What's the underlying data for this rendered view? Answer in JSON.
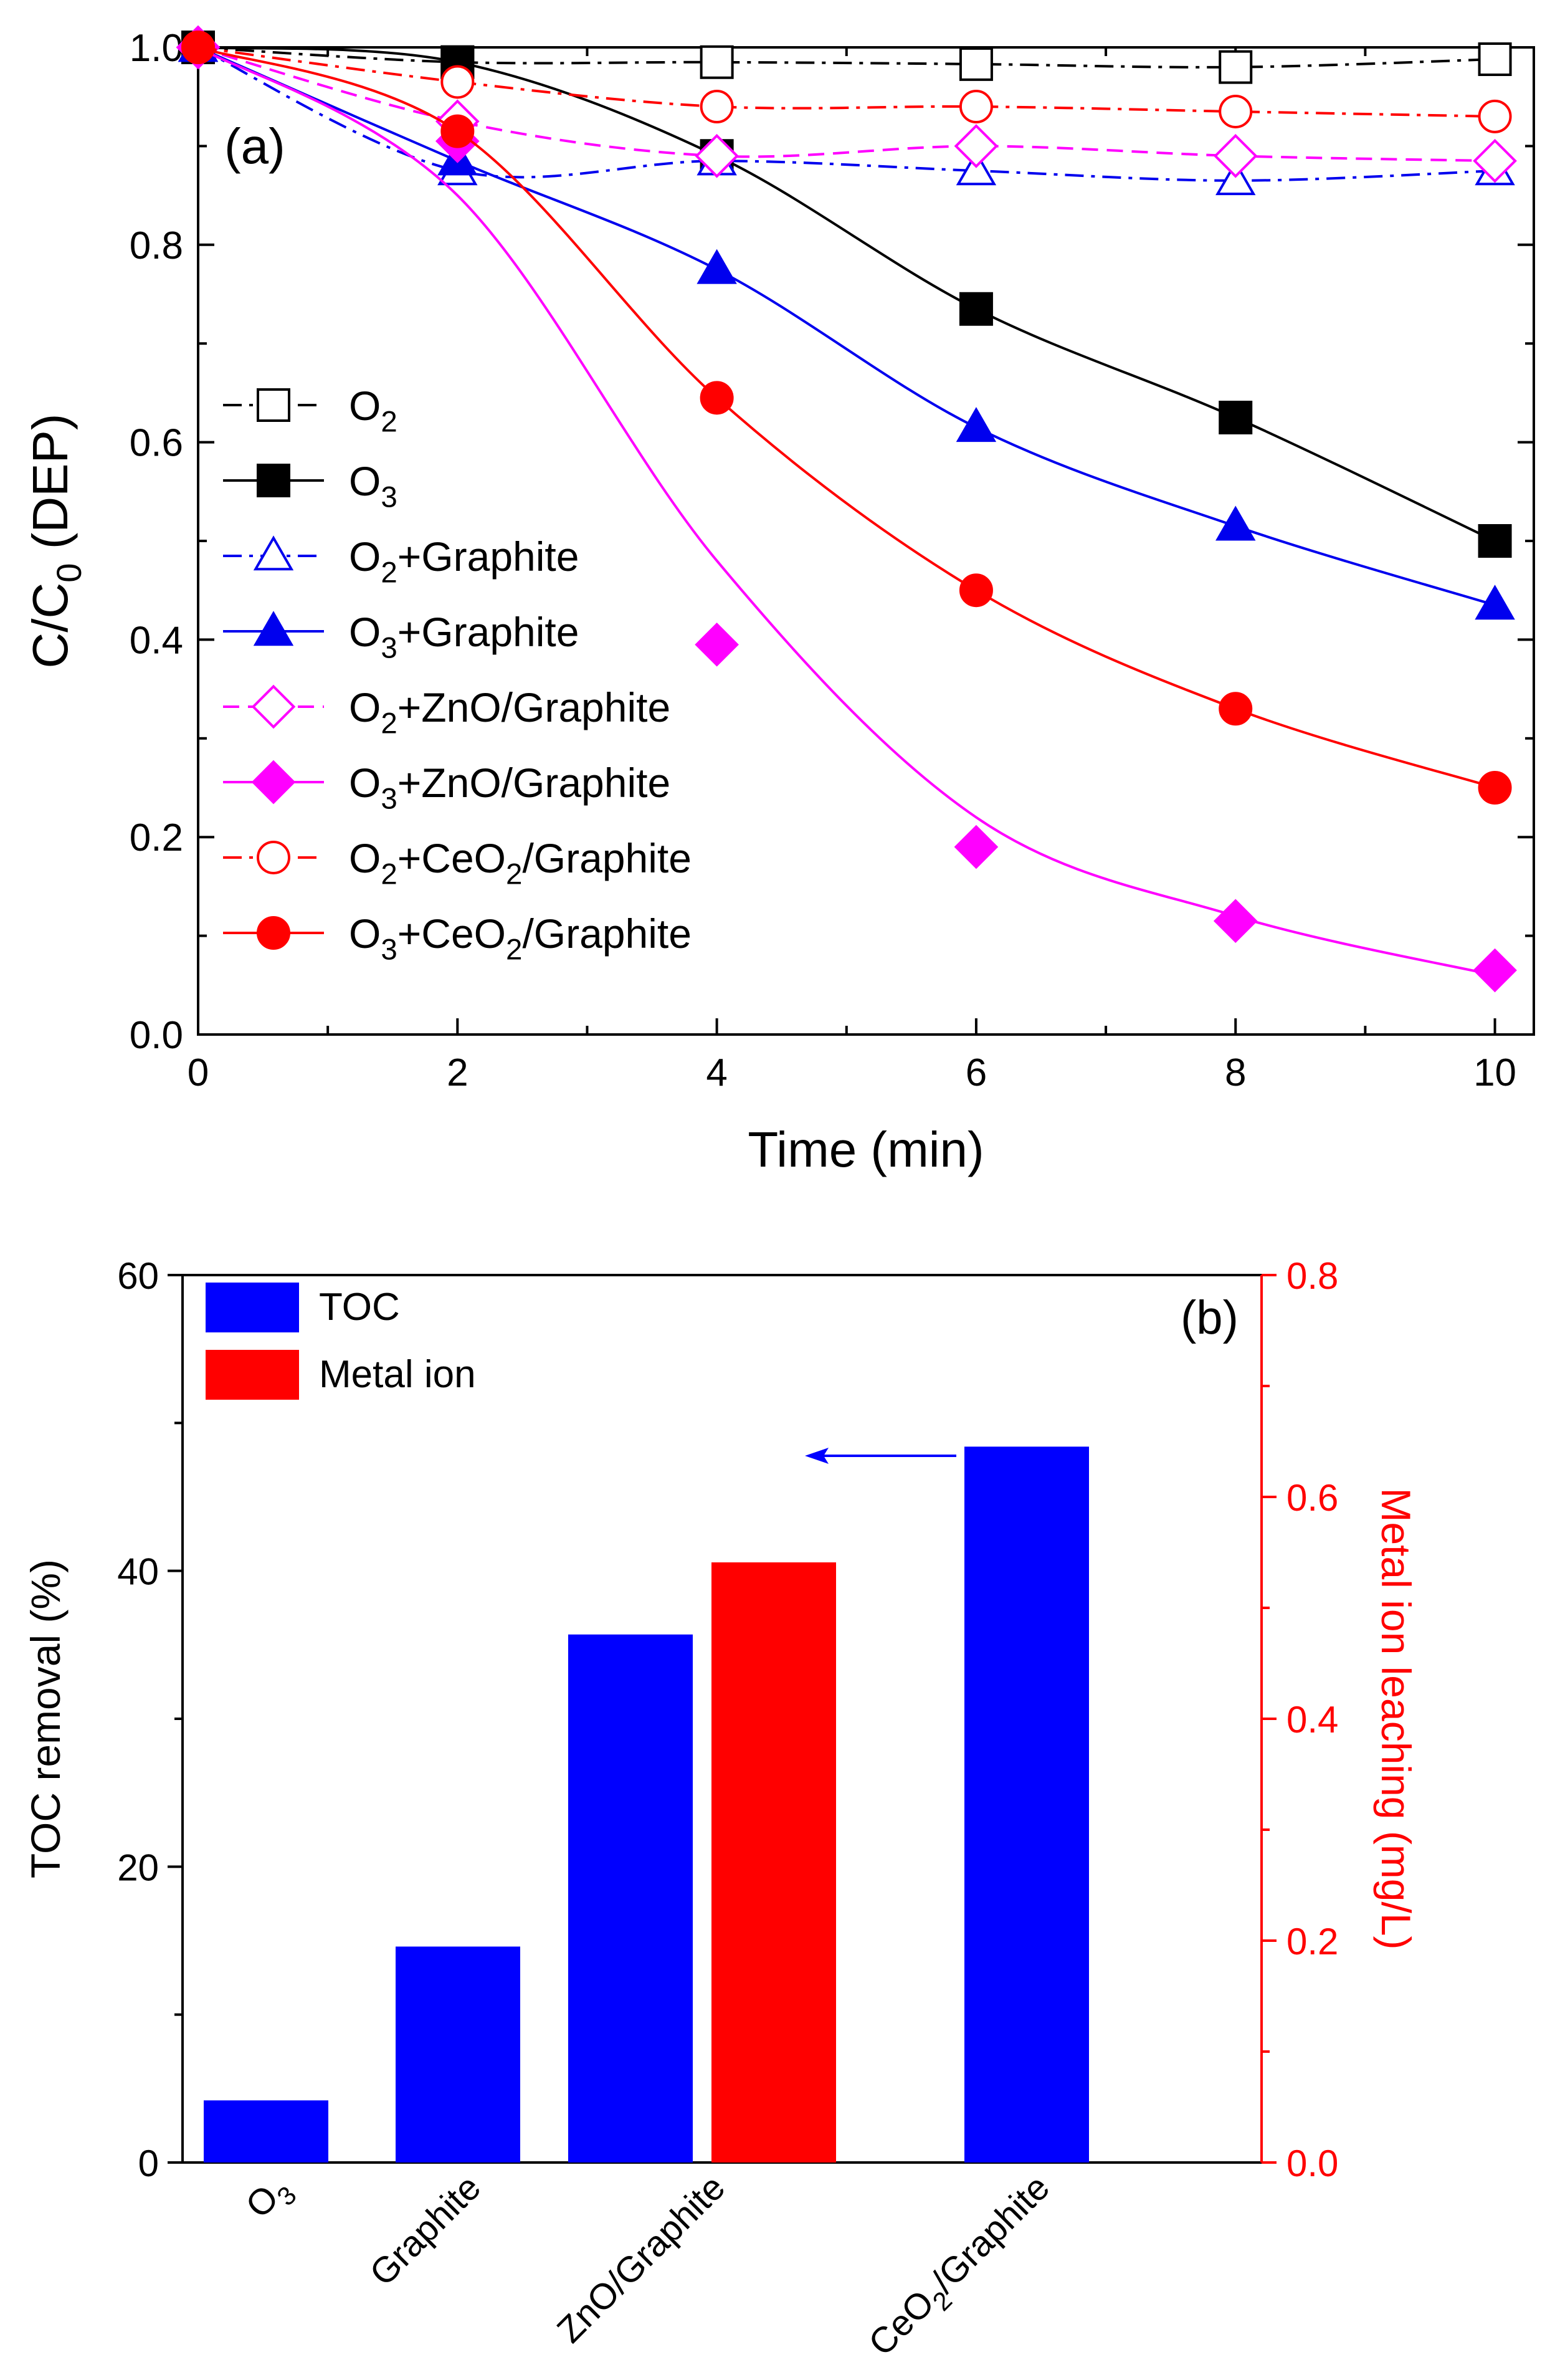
{
  "chart_data": [
    {
      "type": "line",
      "panel_label": "(a)",
      "xlabel": "Time (min)",
      "ylabel_main": "C/C",
      "ylabel_sub": "0",
      "ylabel_suffix": " (DEP)",
      "xlim": [
        0,
        10.3
      ],
      "ylim": [
        0,
        1.0
      ],
      "x_ticks": [
        0,
        2,
        4,
        6,
        8,
        10
      ],
      "x_tick_labels": [
        "0",
        "2",
        "4",
        "6",
        "8",
        "10"
      ],
      "y_ticks": [
        0.0,
        0.2,
        0.4,
        0.6,
        0.8,
        1.0
      ],
      "y_tick_labels": [
        "0.0",
        "0.2",
        "0.4",
        "0.6",
        "0.8",
        "1.0"
      ],
      "legend_position": "left",
      "series": [
        {
          "name": "O2",
          "label_parts": [
            [
              "O",
              ""
            ],
            [
              "2",
              "sub"
            ]
          ],
          "color": "#000000",
          "marker": "square",
          "filled": false,
          "dash": "dashdot",
          "x": [
            0,
            2,
            4,
            6,
            8,
            10
          ],
          "y": [
            1.0,
            0.985,
            0.985,
            0.983,
            0.98,
            0.988
          ]
        },
        {
          "name": "O3",
          "label_parts": [
            [
              "O",
              ""
            ],
            [
              "3",
              "sub"
            ]
          ],
          "color": "#000000",
          "marker": "square",
          "filled": true,
          "dash": "solid",
          "x": [
            0,
            2,
            4,
            6,
            8,
            10
          ],
          "y": [
            1.0,
            0.985,
            0.89,
            0.735,
            0.625,
            0.5
          ]
        },
        {
          "name": "O2+Graphite",
          "label_parts": [
            [
              "O",
              ""
            ],
            [
              "2",
              "sub"
            ],
            [
              "+Graphite",
              ""
            ]
          ],
          "color": "#0000ee",
          "marker": "triangle",
          "filled": false,
          "dash": "dashdot",
          "x": [
            0,
            2,
            4,
            6,
            8,
            10
          ],
          "y": [
            1.0,
            0.875,
            0.885,
            0.875,
            0.865,
            0.875
          ]
        },
        {
          "name": "O3+Graphite",
          "label_parts": [
            [
              "O",
              ""
            ],
            [
              "3",
              "sub"
            ],
            [
              "+Graphite",
              ""
            ]
          ],
          "color": "#0000ee",
          "marker": "triangle",
          "filled": true,
          "dash": "solid",
          "x": [
            0,
            2,
            4,
            6,
            8,
            10
          ],
          "y": [
            1.0,
            0.885,
            0.775,
            0.615,
            0.515,
            0.435
          ]
        },
        {
          "name": "O2+ZnO/Graphite",
          "label_parts": [
            [
              "O",
              ""
            ],
            [
              "2",
              "sub"
            ],
            [
              "+ZnO/Graphite",
              ""
            ]
          ],
          "color": "#ff00ff",
          "marker": "diamond",
          "filled": false,
          "dash": "dashed",
          "x": [
            0,
            2,
            4,
            6,
            8,
            10
          ],
          "y": [
            1.0,
            0.925,
            0.89,
            0.9,
            0.89,
            0.885
          ]
        },
        {
          "name": "O3+ZnO/Graphite",
          "label_parts": [
            [
              "O",
              ""
            ],
            [
              "3",
              "sub"
            ],
            [
              "+ZnO/Graphite",
              ""
            ]
          ],
          "color": "#ff00ff",
          "marker": "diamond",
          "filled": true,
          "dash": "solid",
          "x": [
            0,
            2,
            4,
            6,
            8,
            10
          ],
          "y": [
            1.0,
            0.905,
            0.395,
            0.19,
            0.115,
            0.065
          ],
          "fit_y": [
            1.0,
            0.85,
            0.48,
            0.22,
            0.12,
            0.06
          ]
        },
        {
          "name": "O2+CeO2/Graphite",
          "label_parts": [
            [
              "O",
              ""
            ],
            [
              "2",
              "sub"
            ],
            [
              "+CeO",
              ""
            ],
            [
              "2",
              "sub"
            ],
            [
              "/Graphite",
              ""
            ]
          ],
          "color": "#ff0000",
          "marker": "circle",
          "filled": false,
          "dash": "dashdot",
          "x": [
            0,
            2,
            4,
            6,
            8,
            10
          ],
          "y": [
            1.0,
            0.965,
            0.94,
            0.94,
            0.935,
            0.93
          ]
        },
        {
          "name": "O3+CeO2/Graphite",
          "label_parts": [
            [
              "O",
              ""
            ],
            [
              "3",
              "sub"
            ],
            [
              "+CeO",
              ""
            ],
            [
              "2",
              "sub"
            ],
            [
              "/Graphite",
              ""
            ]
          ],
          "color": "#ff0000",
          "marker": "circle",
          "filled": true,
          "dash": "solid",
          "x": [
            0,
            2,
            4,
            6,
            8,
            10
          ],
          "y": [
            1.0,
            0.915,
            0.645,
            0.45,
            0.33,
            0.25
          ]
        }
      ]
    },
    {
      "type": "bar",
      "panel_label": "(b)",
      "ylabel_left": "TOC removal (%)",
      "ylabel_right": "Metal ion leaching (mg/L)",
      "ylim_left": [
        0,
        60
      ],
      "ylim_right": [
        0,
        0.8
      ],
      "y_ticks_left": [
        0,
        20,
        40,
        60
      ],
      "y_tick_labels_left": [
        "0",
        "20",
        "40",
        "60"
      ],
      "y_ticks_right": [
        0.0,
        0.2,
        0.4,
        0.6,
        0.8
      ],
      "y_tick_labels_right": [
        "0.0",
        "0.2",
        "0.4",
        "0.6",
        "0.8"
      ],
      "right_axis_color": "#ff0000",
      "legend_position": "top-left",
      "categories": [
        "O3",
        "Graphite",
        "ZnO/Graphite",
        "CeO2/Graphite"
      ],
      "category_label_parts": [
        [
          [
            "O",
            ""
          ],
          [
            "3",
            "sub"
          ]
        ],
        [
          [
            "Graphite",
            ""
          ]
        ],
        [
          [
            "ZnO/Graphite",
            ""
          ]
        ],
        [
          [
            "CeO",
            ""
          ],
          [
            "2",
            "sub"
          ],
          [
            "/Graphite",
            ""
          ]
        ]
      ],
      "series": [
        {
          "name": "TOC",
          "color": "#0000ff",
          "axis": "left",
          "values": [
            4.2,
            14.6,
            35.7,
            48.4
          ]
        },
        {
          "name": "Metal ion",
          "color": "#ff0000",
          "axis": "right",
          "values": [
            0,
            0,
            0.541,
            0
          ]
        }
      ],
      "annotation": "arrow pointing left toward TOC axis, beside CeO2/Graphite bar"
    }
  ]
}
